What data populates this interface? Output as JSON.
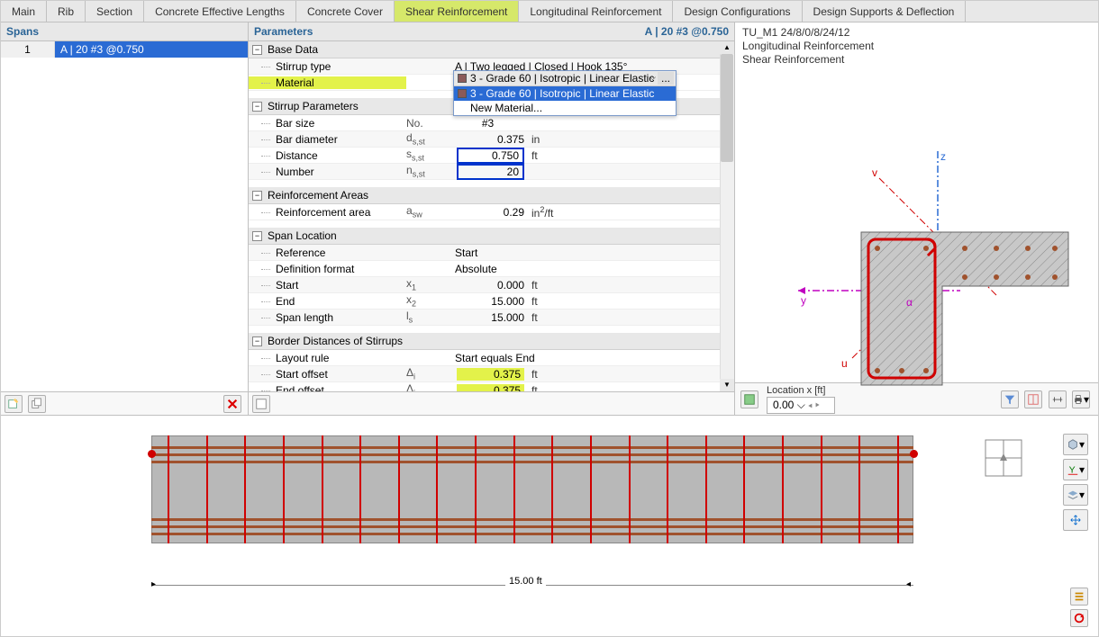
{
  "tabs": {
    "items": [
      "Main",
      "Rib",
      "Section",
      "Concrete Effective Lengths",
      "Concrete Cover",
      "Shear Reinforcement",
      "Longitudinal Reinforcement",
      "Design Configurations",
      "Design Supports & Deflection"
    ],
    "active_index": 5,
    "active_bg": "#d6e86a"
  },
  "spans": {
    "title": "Spans",
    "rows": [
      {
        "num": "1",
        "label": "A | 20 #3 @0.750"
      }
    ],
    "selected_bg": "#2a6bd4"
  },
  "params": {
    "title": "Parameters",
    "right_text": "A | 20 #3 @0.750",
    "groups": {
      "base": {
        "title": "Base Data",
        "stirrup_type": {
          "label": "Stirrup type",
          "value": "A | Two legged | Closed | Hook 135°"
        },
        "material": {
          "label": "Material",
          "selected": "3 - Grade 60 | Isotropic | Linear Elastic",
          "options": [
            "3 - Grade 60 | Isotropic | Linear Elastic"
          ],
          "new_label": "New Material...",
          "swatch_color": "#8b5a5a",
          "option_sel_bg": "#2a6bd4"
        }
      },
      "stirrup": {
        "title": "Stirrup Parameters",
        "bar_size": {
          "label": "Bar size",
          "symbol": "No.",
          "value": "#3",
          "unit": ""
        },
        "bar_diam": {
          "label": "Bar diameter",
          "symbol": "ds,st",
          "value": "0.375",
          "unit": "in"
        },
        "distance": {
          "label": "Distance",
          "symbol": "ss,st",
          "value": "0.750",
          "unit": "ft",
          "boxed": true
        },
        "number": {
          "label": "Number",
          "symbol": "ns,st",
          "value": "20",
          "unit": "",
          "boxed": true
        }
      },
      "areas": {
        "title": "Reinforcement Areas",
        "area": {
          "label": "Reinforcement area",
          "symbol": "asw",
          "value": "0.29",
          "unit": "in²/ft"
        }
      },
      "span_loc": {
        "title": "Span Location",
        "reference": {
          "label": "Reference",
          "value": "Start"
        },
        "def_format": {
          "label": "Definition format",
          "value": "Absolute"
        },
        "start": {
          "label": "Start",
          "symbol": "x1",
          "value": "0.000",
          "unit": "ft"
        },
        "end": {
          "label": "End",
          "symbol": "x2",
          "value": "15.000",
          "unit": "ft"
        },
        "length": {
          "label": "Span length",
          "symbol": "ls",
          "value": "15.000",
          "unit": "ft"
        }
      },
      "border": {
        "title": "Border Distances of Stirrups",
        "rule": {
          "label": "Layout rule",
          "value": "Start equals End"
        },
        "start": {
          "label": "Start offset",
          "symbol": "Δi",
          "value": "0.375",
          "unit": "ft",
          "hl": true
        },
        "end": {
          "label": "End offset",
          "symbol": "Δj",
          "value": "0.375",
          "unit": "ft",
          "hl": true
        }
      }
    },
    "box_border": "#0033cc",
    "hl_bg": "#e3f24a"
  },
  "preview": {
    "title_lines": [
      "TU_M1 24/8/0/8/24/12",
      "Longitudinal Reinforcement",
      "Shear Reinforcement"
    ],
    "axes": {
      "z_color": "#2a6bd4",
      "v_color": "#d00000",
      "y_color": "#c000c0",
      "u_color": "#d00000"
    },
    "section": {
      "fill": "#c8c8c8",
      "stirrup_color": "#d00000",
      "rebar_color": "#a0522d",
      "hatch_color": "#888888"
    },
    "location": {
      "label": "Location x [ft]",
      "value": "0.00"
    }
  },
  "elevation": {
    "beam_fill": "#b8b8b8",
    "rebar_color": "#a0522d",
    "stirrup_color": "#d00000",
    "num_stirrups": 20,
    "rebar_y": [
      12,
      20,
      28,
      92,
      100,
      108
    ],
    "dim_label": "15.00 ft",
    "node_color": "#d00000"
  },
  "colors": {
    "panel_header_bg": "#e8e8e8",
    "link_blue": "#2a6496"
  }
}
